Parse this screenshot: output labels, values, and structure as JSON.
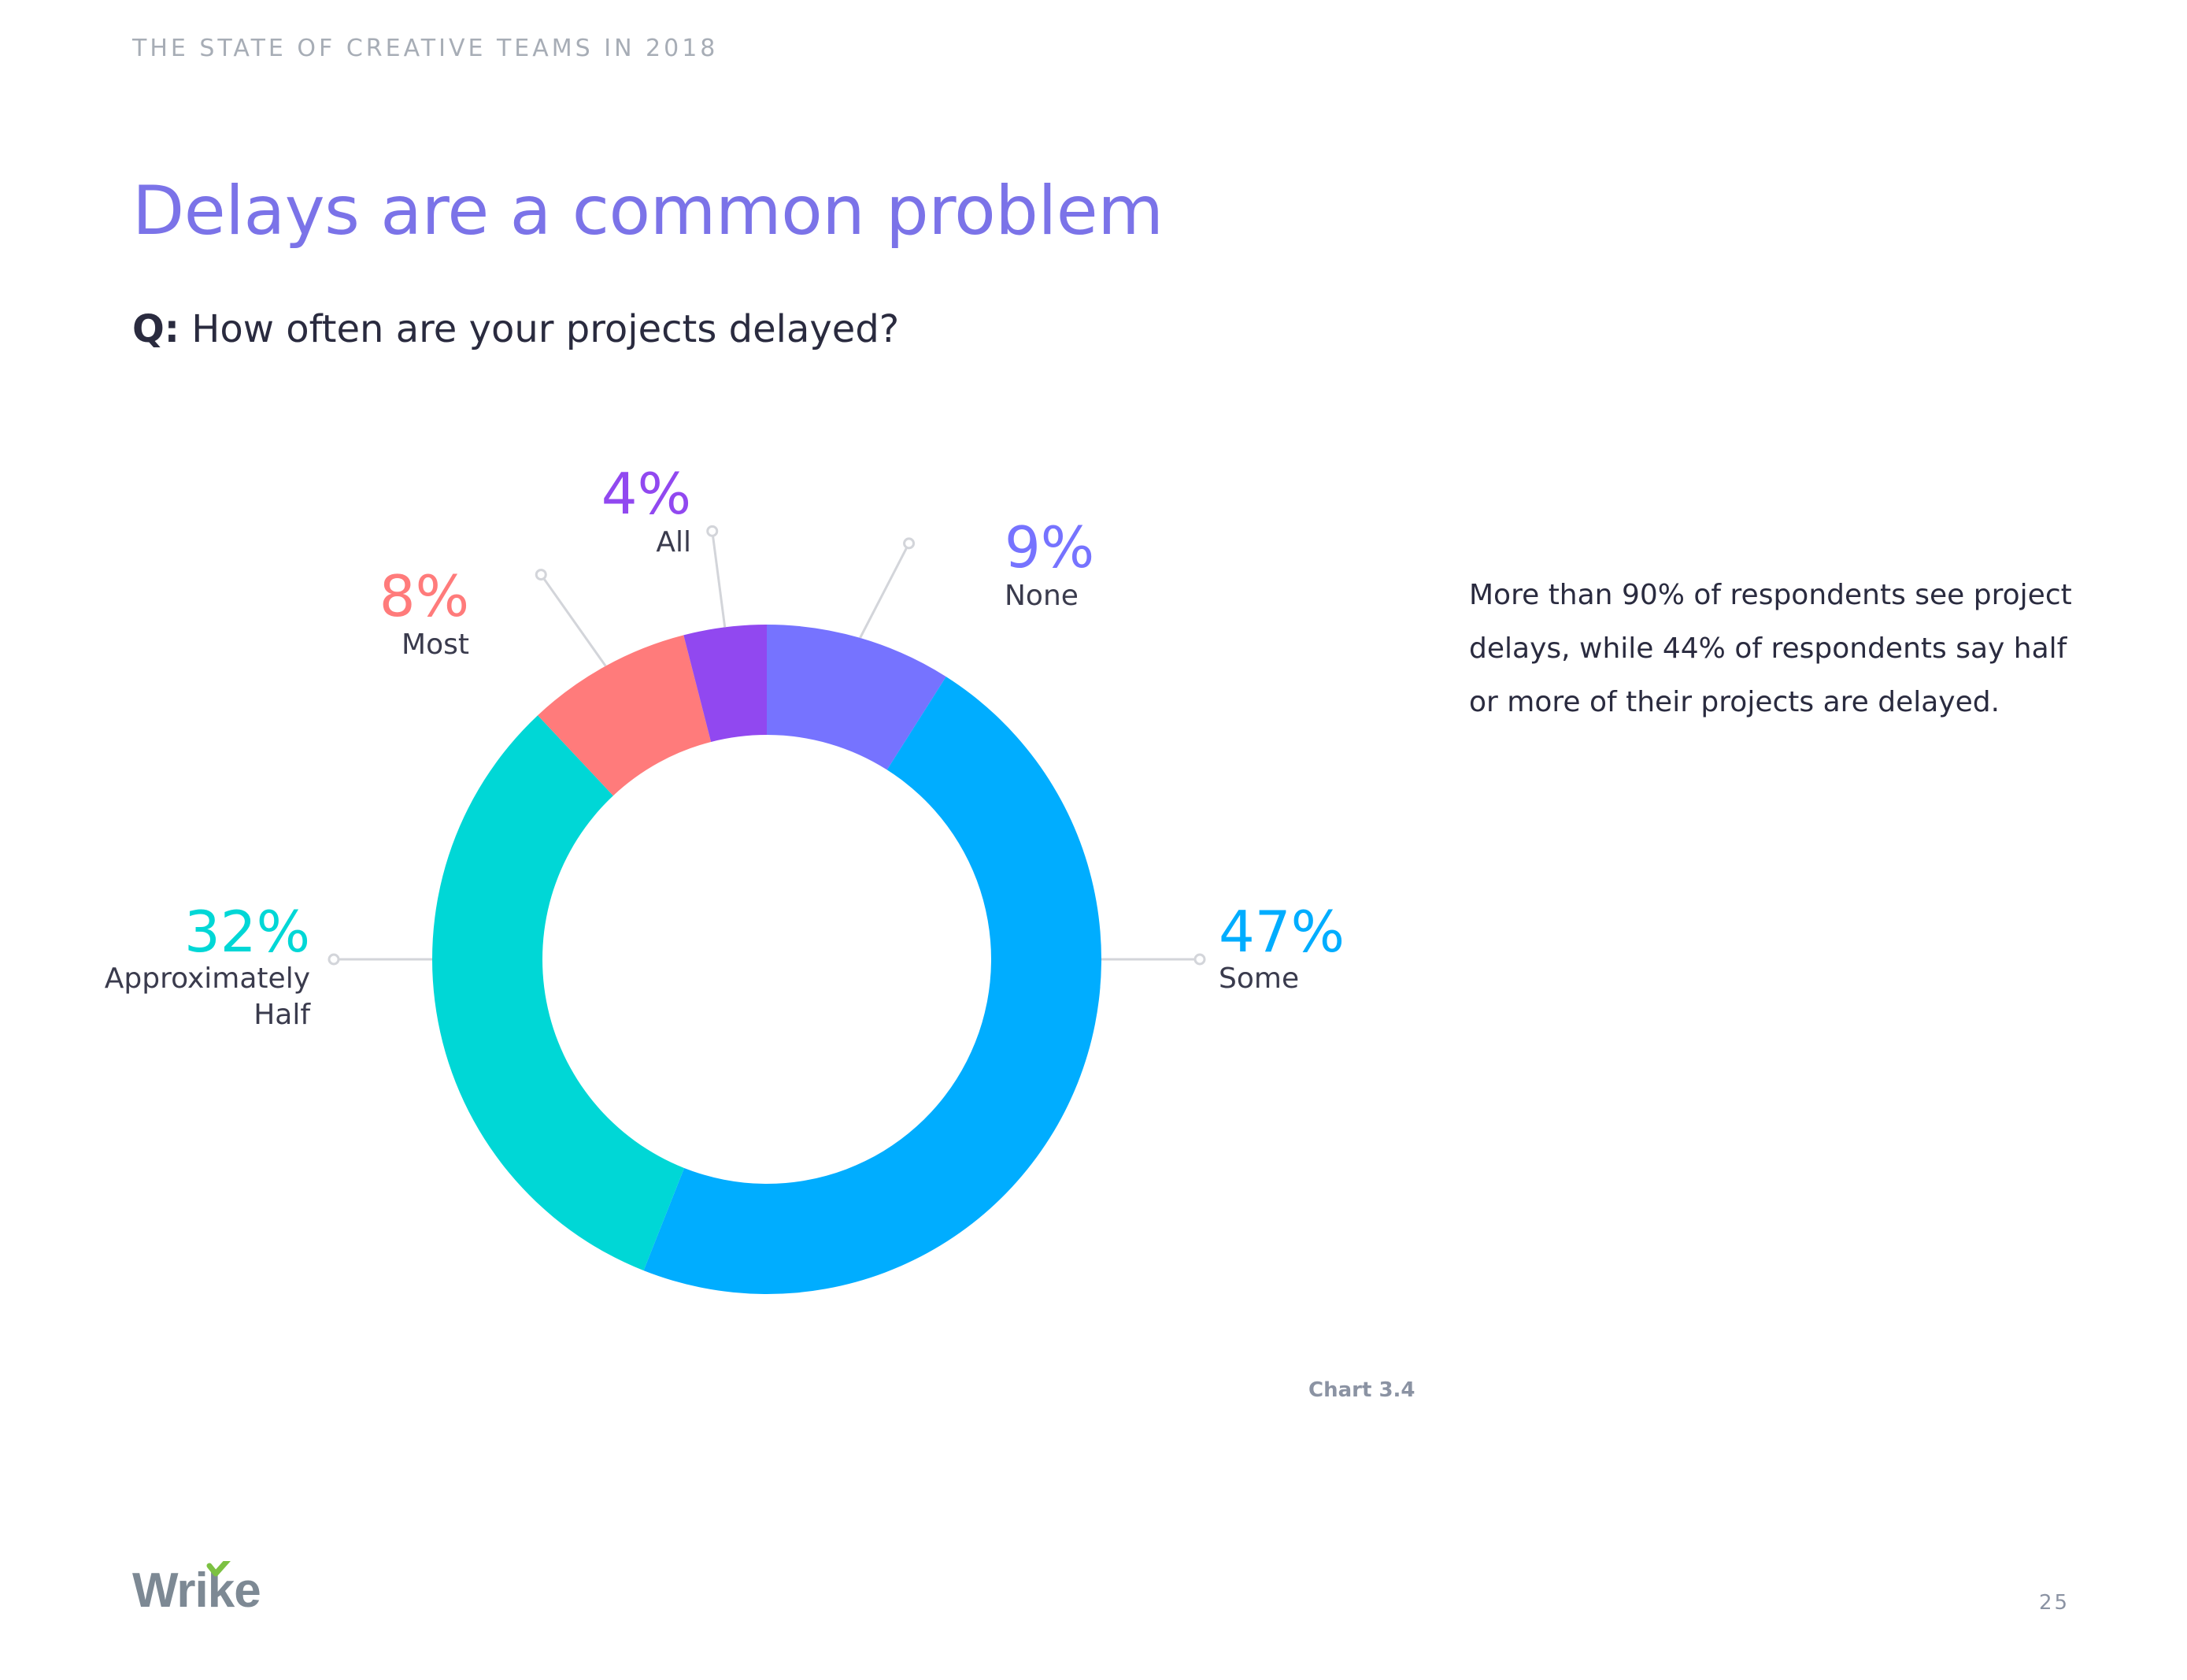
{
  "header": {
    "label": "THE STATE OF CREATIVE TEAMS IN 2018"
  },
  "title": "Delays are a common problem",
  "question": {
    "prefix": "Q:",
    "text": "How often are your projects delayed?"
  },
  "callout": {
    "text": "More than 90% of respondents see project delays, while 44% of respondents say half or more of their projects are delayed."
  },
  "chart_caption": "Chart 3.4",
  "footer": {
    "logo": "Wrike",
    "page_number": "25"
  },
  "chart_data": {
    "type": "pie",
    "style": "donut",
    "unit": "%",
    "legend": "none",
    "slices": [
      {
        "label": "None",
        "value": 9,
        "value_label": "9%",
        "color": "#7673ff"
      },
      {
        "label": "Some",
        "value": 47,
        "value_label": "47%",
        "color": "#00adff"
      },
      {
        "label": "Approximately Half",
        "value": 32,
        "value_label": "32%",
        "color": "#00d7d6"
      },
      {
        "label": "Most",
        "value": 8,
        "value_label": "8%",
        "color": "#ff7b7b"
      },
      {
        "label": "All",
        "value": 4,
        "value_label": "4%",
        "color": "#9148f0"
      }
    ]
  },
  "colors": {
    "title": "#7b73e8",
    "body_text": "#2a2b3f",
    "header": "#a7adb6",
    "leader_line": "#d3d5da",
    "logo": "#7d8994",
    "logo_check": "#7cc142"
  }
}
